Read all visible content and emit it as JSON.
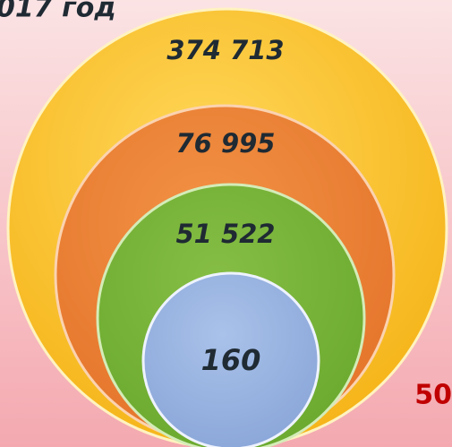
{
  "title": "017 год",
  "nodes": [
    {
      "label": "374 713"
    },
    {
      "label": "76 995"
    },
    {
      "label": "51 522"
    },
    {
      "label": "160"
    }
  ],
  "side_label": "50"
}
